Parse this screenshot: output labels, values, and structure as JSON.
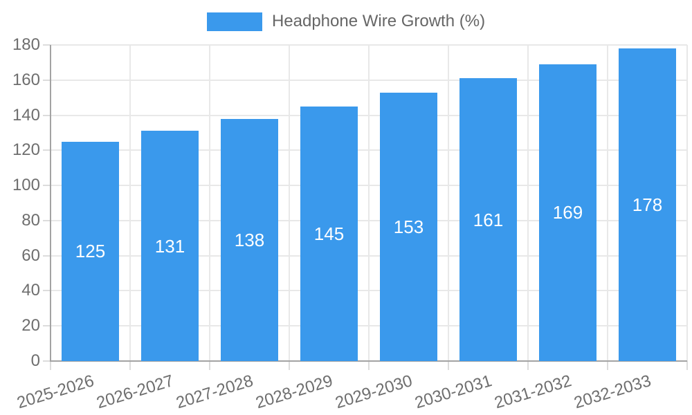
{
  "chart_data": {
    "type": "bar",
    "title": "Headphone Wire Growth (%)",
    "categories": [
      "2025-2026",
      "2026-2027",
      "2027-2028",
      "2028-2029",
      "2029-2030",
      "2030-2031",
      "2031-2032",
      "2032-2033"
    ],
    "values": [
      125,
      131,
      138,
      145,
      153,
      161,
      169,
      178
    ],
    "xlabel": "",
    "ylabel": "",
    "ylim": [
      0,
      180
    ],
    "yticks": [
      0,
      20,
      40,
      60,
      80,
      100,
      120,
      140,
      160,
      180
    ],
    "grid": true,
    "legend_position": "top",
    "bar_color": "#3A99EC",
    "value_label_color": "#FFFFFF"
  },
  "colors": {
    "accent": "#3A99EC",
    "axis_line": "#A3A3A3",
    "gridline": "#E8E8E8",
    "tick_mark": "#DCDCDC",
    "tick_text": "#6E6E6E",
    "legend_text": "#666666",
    "background": "#FFFFFF"
  }
}
